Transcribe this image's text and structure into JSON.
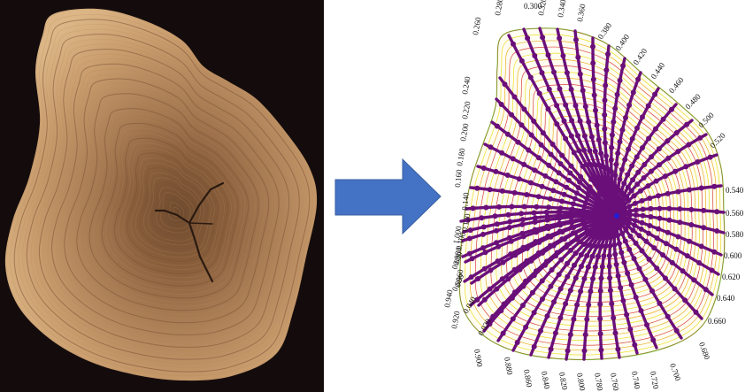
{
  "panels": {
    "left": {
      "subject": "tree cross-section photograph"
    },
    "arrow": {
      "direction": "right",
      "color": "#4472c4"
    },
    "right": {
      "subject": "ring-width measurement paths",
      "path_color": "#6a0f7a",
      "pith_marker_color": "#1f1fd6",
      "ring_colors": [
        "#d21f1f",
        "#e8a000",
        "#e6d800"
      ],
      "boundary_color": "#7ac943",
      "path_labels": [
        "0.020",
        "0.040",
        "0.060",
        "0.080",
        "0.100",
        "0.120",
        "0.140",
        "0.160",
        "0.180",
        "0.200",
        "0.220",
        "0.240",
        "0.260",
        "0.280",
        "0.300",
        "0.320",
        "0.340",
        "0.360",
        "0.380",
        "0.400",
        "0.420",
        "0.440",
        "0.460",
        "0.480",
        "0.500",
        "0.520",
        "0.540",
        "0.560",
        "0.580",
        "0.600",
        "0.620",
        "0.640",
        "0.660",
        "0.680",
        "0.700",
        "0.720",
        "0.740",
        "0.760",
        "0.780",
        "0.800",
        "0.820",
        "0.840",
        "0.860",
        "0.880",
        "0.900",
        "0.920",
        "0.940",
        "0.960",
        "0.980",
        "1.000"
      ]
    }
  }
}
